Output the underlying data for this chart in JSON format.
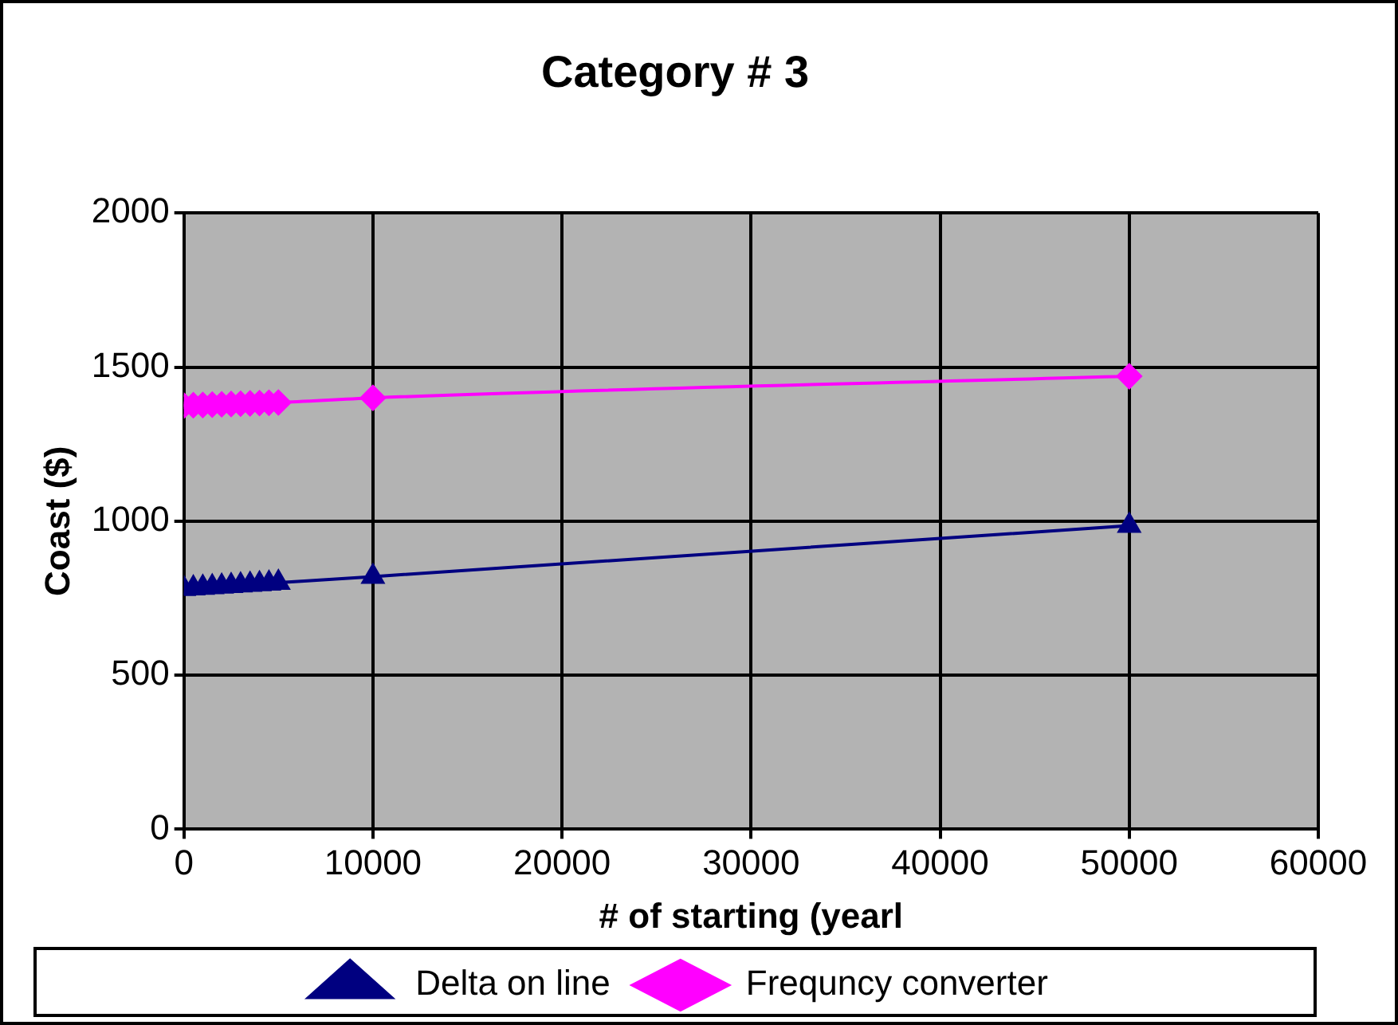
{
  "chart_data": {
    "type": "line",
    "title": "Category # 3",
    "xlabel": "# of starting (yearl",
    "ylabel": "Coast ($)",
    "x": [
      0,
      500,
      1000,
      1500,
      2000,
      2500,
      3000,
      3500,
      4000,
      4500,
      5000,
      10000,
      50000
    ],
    "series": [
      {
        "name": "Delta on line",
        "color": "#000080",
        "marker": "triangle",
        "values": [
          780,
          782,
          784,
          786,
          788,
          790,
          792,
          794,
          796,
          798,
          800,
          820,
          985
        ]
      },
      {
        "name": "Frequncy converter",
        "color": "#ff00ff",
        "marker": "diamond",
        "values": [
          1375,
          1376,
          1377,
          1378,
          1379,
          1380,
          1381,
          1382,
          1383,
          1384,
          1385,
          1400,
          1470
        ]
      }
    ],
    "xlim": [
      0,
      60000
    ],
    "xticks": [
      0,
      10000,
      20000,
      30000,
      40000,
      50000,
      60000
    ],
    "ylim": [
      0,
      2000
    ],
    "yticks": [
      0,
      500,
      1000,
      1500,
      2000
    ],
    "grid": true,
    "legend": "bottom"
  }
}
